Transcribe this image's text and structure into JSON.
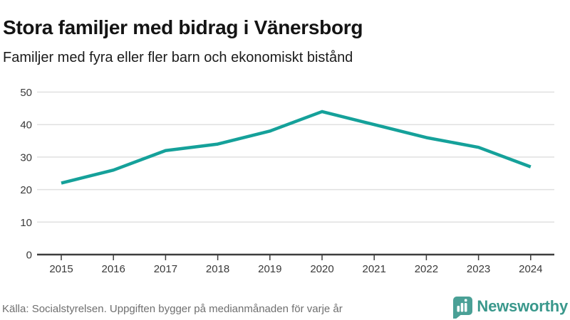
{
  "header": {
    "title": "Stora familjer med bidrag i Vänersborg",
    "subtitle": "Familjer med fyra eller fler barn och ekonomiskt bistånd"
  },
  "chart_data": {
    "type": "line",
    "title": "Stora familjer med bidrag i Vänersborg",
    "subtitle": "Familjer med fyra eller fler barn och ekonomiskt bistånd",
    "x": [
      2015,
      2016,
      2017,
      2018,
      2019,
      2020,
      2021,
      2022,
      2023,
      2024
    ],
    "series": [
      {
        "name": "Familjer med fyra eller fler barn och ekonomiskt bistånd",
        "values": [
          22,
          26,
          32,
          34,
          38,
          44,
          40,
          36,
          33,
          27
        ]
      }
    ],
    "xlabel": "",
    "ylabel": "",
    "ylim": [
      0,
      50
    ],
    "yticks": [
      0,
      10,
      20,
      30,
      40,
      50
    ],
    "grid": "horizontal",
    "legend": "none",
    "line_color": "#15a19a",
    "gridline_color": "#e0e0e0",
    "axis_color": "#3d3d3d"
  },
  "footer": {
    "source": "Källa: Socialstyrelsen. Uppgiften bygger på medianmånaden för varje år",
    "logo_text": "Newsworthy",
    "logo_color": "#4aa096"
  }
}
